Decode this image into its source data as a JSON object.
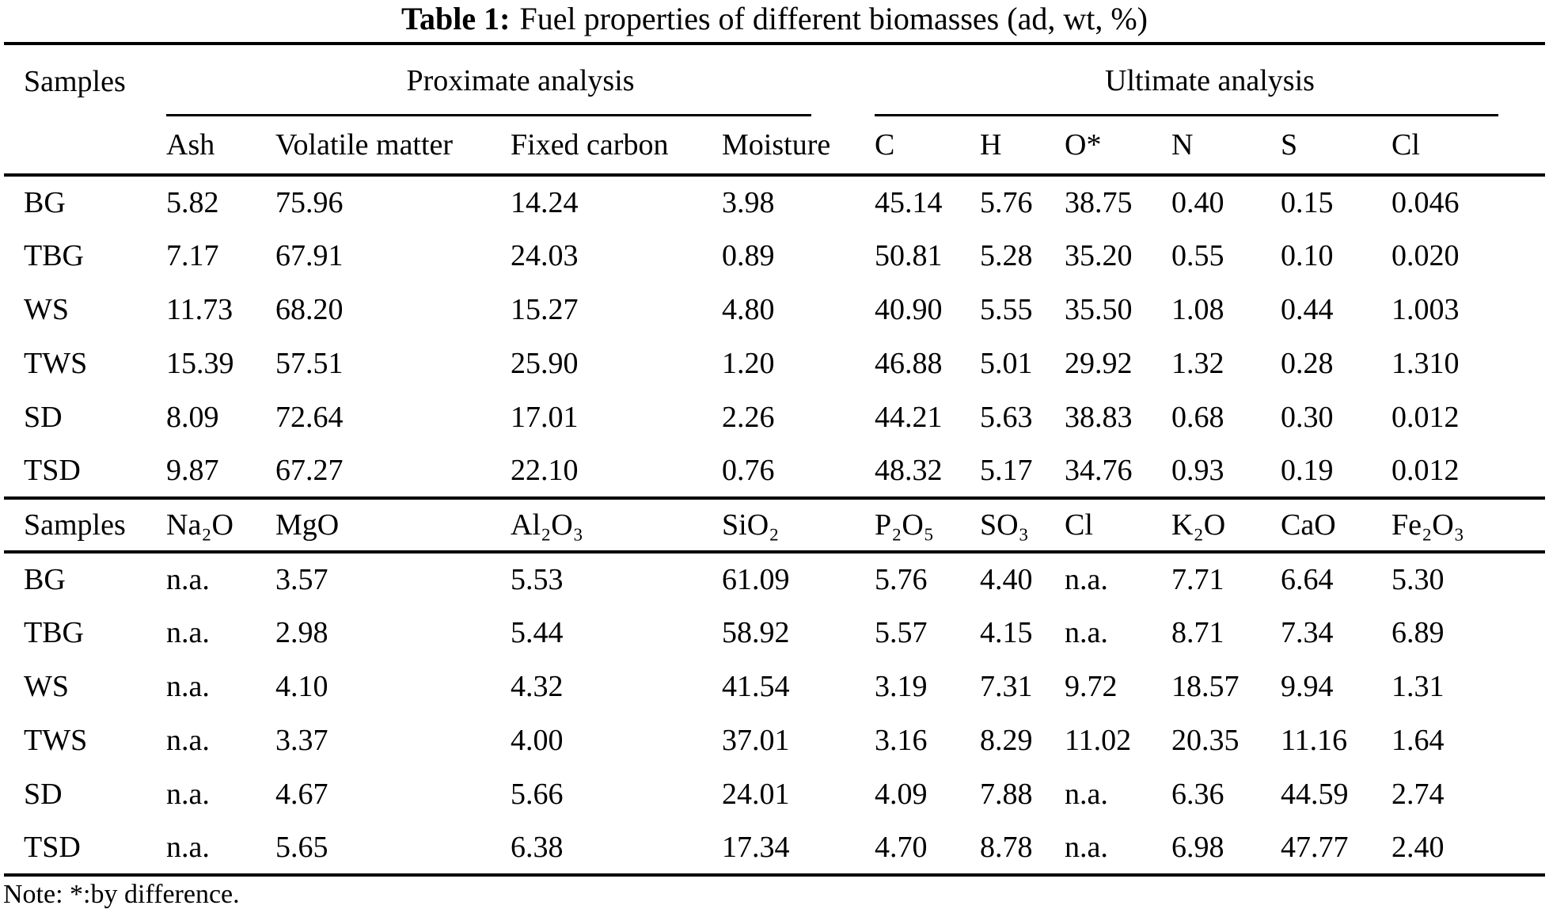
{
  "title": {
    "label": "Table 1:",
    "text": "Fuel properties of different biomasses (ad, wt, %)"
  },
  "table1": {
    "corner_header": "Samples",
    "group_headers": {
      "proximate": "Proximate analysis",
      "ultimate": "Ultimate analysis"
    },
    "columns": [
      "Ash",
      "Volatile matter",
      "Fixed carbon",
      "Moisture",
      "C",
      "H",
      "O*",
      "N",
      "S",
      "Cl"
    ],
    "rows": [
      {
        "sample": "BG",
        "values": [
          "5.82",
          "75.96",
          "14.24",
          "3.98",
          "45.14",
          "5.76",
          "38.75",
          "0.40",
          "0.15",
          "0.046"
        ]
      },
      {
        "sample": "TBG",
        "values": [
          "7.17",
          "67.91",
          "24.03",
          "0.89",
          "50.81",
          "5.28",
          "35.20",
          "0.55",
          "0.10",
          "0.020"
        ]
      },
      {
        "sample": "WS",
        "values": [
          "11.73",
          "68.20",
          "15.27",
          "4.80",
          "40.90",
          "5.55",
          "35.50",
          "1.08",
          "0.44",
          "1.003"
        ]
      },
      {
        "sample": "TWS",
        "values": [
          "15.39",
          "57.51",
          "25.90",
          "1.20",
          "46.88",
          "5.01",
          "29.92",
          "1.32",
          "0.28",
          "1.310"
        ]
      },
      {
        "sample": "SD",
        "values": [
          "8.09",
          "72.64",
          "17.01",
          "2.26",
          "44.21",
          "5.63",
          "38.83",
          "0.68",
          "0.30",
          "0.012"
        ]
      },
      {
        "sample": "TSD",
        "values": [
          "9.87",
          "67.27",
          "22.10",
          "0.76",
          "48.32",
          "5.17",
          "34.76",
          "0.93",
          "0.19",
          "0.012"
        ]
      }
    ]
  },
  "table2": {
    "corner_header": "Samples",
    "columns": [
      "Na₂O",
      "MgO",
      "Al₂O₃",
      "SiO₂",
      "P₂O₅",
      "SO₃",
      "Cl",
      "K₂O",
      "CaO",
      "Fe₂O₃"
    ],
    "rows": [
      {
        "sample": "BG",
        "values": [
          "n.a.",
          "3.57",
          "5.53",
          "61.09",
          "5.76",
          "4.40",
          "n.a.",
          "7.71",
          "6.64",
          "5.30"
        ]
      },
      {
        "sample": "TBG",
        "values": [
          "n.a.",
          "2.98",
          "5.44",
          "58.92",
          "5.57",
          "4.15",
          "n.a.",
          "8.71",
          "7.34",
          "6.89"
        ]
      },
      {
        "sample": "WS",
        "values": [
          "n.a.",
          "4.10",
          "4.32",
          "41.54",
          "3.19",
          "7.31",
          "9.72",
          "18.57",
          "9.94",
          "1.31"
        ]
      },
      {
        "sample": "TWS",
        "values": [
          "n.a.",
          "3.37",
          "4.00",
          "37.01",
          "3.16",
          "8.29",
          "11.02",
          "20.35",
          "11.16",
          "1.64"
        ]
      },
      {
        "sample": "SD",
        "values": [
          "n.a.",
          "4.67",
          "5.66",
          "24.01",
          "4.09",
          "7.88",
          "n.a.",
          "6.36",
          "44.59",
          "2.74"
        ]
      },
      {
        "sample": "TSD",
        "values": [
          "n.a.",
          "5.65",
          "6.38",
          "17.34",
          "4.70",
          "8.78",
          "n.a.",
          "6.98",
          "47.77",
          "2.40"
        ]
      }
    ]
  },
  "note": "Note: *:by difference."
}
